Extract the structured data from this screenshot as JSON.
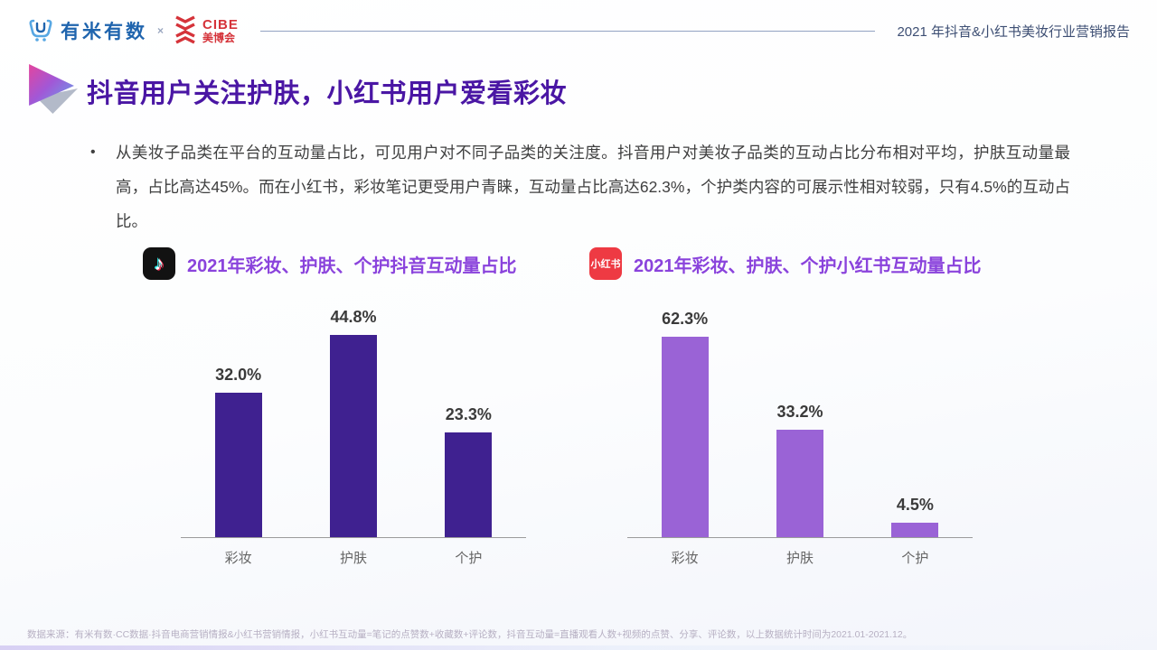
{
  "header": {
    "logo_umi": "有米有数",
    "logo_separator": "×",
    "logo_cibe_line1": "CIBE",
    "logo_cibe_line2": "美博会",
    "report_title": "2021 年抖音&小红书美妆行业营销报告"
  },
  "title": "抖音用户关注护肤，小红书用户爱看彩妆",
  "body": {
    "bullet": "•",
    "paragraph": "从美妆子品类在平台的互动量占比，可见用户对不同子品类的关注度。抖音用户对美妆子品类的互动占比分布相对平均，护肤互动量最高，占比高达45%。而在小红书，彩妆笔记更受用户青睐，互动量占比高达62.3%，个护类内容的可展示性相对较弱，只有4.5%的互动占比。"
  },
  "icons": {
    "douyin_note": "♪",
    "xiaohongshu_label": "小红书"
  },
  "colors": {
    "title_purple": "#4A16A4",
    "chart_title_purple": "#8A43DC",
    "douyin_bar": "#3F2190",
    "xiaohongshu_bar": "#9A63D6",
    "umi_blue": "#2065AE",
    "cibe_red": "#D5333A"
  },
  "chart_data": [
    {
      "type": "bar",
      "title": "2021年彩妆、护肤、个护抖音互动量占比",
      "platform": "抖音",
      "categories": [
        "彩妆",
        "护肤",
        "个护"
      ],
      "values": [
        32.0,
        44.8,
        23.3
      ],
      "labels": [
        "32.0%",
        "44.8%",
        "23.3%"
      ],
      "bar_color": "#3F2190",
      "ylim": [
        0,
        50
      ],
      "grid": false,
      "value_label_position": "above-bar",
      "legend": "none"
    },
    {
      "type": "bar",
      "title": "2021年彩妆、护肤、个护小红书互动量占比",
      "platform": "小红书",
      "categories": [
        "彩妆",
        "护肤",
        "个护"
      ],
      "values": [
        62.3,
        33.2,
        4.5
      ],
      "labels": [
        "62.3%",
        "33.2%",
        "4.5%"
      ],
      "bar_color": "#9A63D6",
      "ylim": [
        0,
        70
      ],
      "grid": false,
      "value_label_position": "above-bar",
      "legend": "none"
    }
  ],
  "footer": {
    "source": "数据来源：有米有数·CC数据·抖音电商营销情报&小红书营销情报，小红书互动量=笔记的点赞数+收藏数+评论数，抖音互动量=直播观看人数+视频的点赞、分享、评论数，以上数据统计时间为2021.01-2021.12。"
  }
}
